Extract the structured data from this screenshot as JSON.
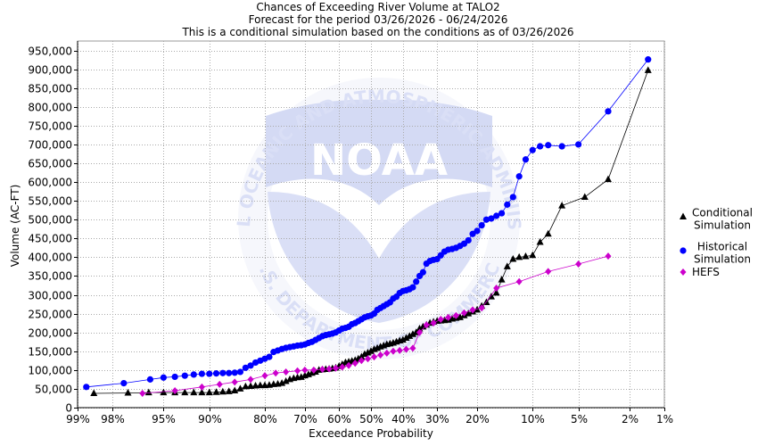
{
  "chart_data": {
    "type": "scatter",
    "title_lines": [
      "Chances of Exceeding River Volume at TALO2",
      "Forecast for the period 03/26/2026 - 06/24/2026",
      "This is a conditional simulation based on the conditions as of 03/26/2026"
    ],
    "xlabel": "Exceedance Probability",
    "ylabel": "Volume (AC-FT)",
    "x_scale": "normal-probability (reversed)",
    "xlim": [
      99,
      1
    ],
    "ylim": [
      0,
      975000
    ],
    "grid": true,
    "legend_position": "right",
    "x_ticks": [
      {
        "value": 99,
        "label": "99%"
      },
      {
        "value": 98,
        "label": "98%"
      },
      {
        "value": 95,
        "label": "95%"
      },
      {
        "value": 90,
        "label": "90%"
      },
      {
        "value": 80,
        "label": "80%"
      },
      {
        "value": 70,
        "label": "70%"
      },
      {
        "value": 60,
        "label": "60%"
      },
      {
        "value": 50,
        "label": "50%"
      },
      {
        "value": 40,
        "label": "40%"
      },
      {
        "value": 30,
        "label": "30%"
      },
      {
        "value": 20,
        "label": "20%"
      },
      {
        "value": 10,
        "label": "10%"
      },
      {
        "value": 5,
        "label": "5%"
      },
      {
        "value": 2,
        "label": "2%"
      },
      {
        "value": 1,
        "label": "1%"
      }
    ],
    "y_ticks": [
      {
        "value": 0,
        "label": "0"
      },
      {
        "value": 50000,
        "label": "50,000"
      },
      {
        "value": 100000,
        "label": "100,000"
      },
      {
        "value": 150000,
        "label": "150,000"
      },
      {
        "value": 200000,
        "label": "200,000"
      },
      {
        "value": 250000,
        "label": "250,000"
      },
      {
        "value": 300000,
        "label": "300,000"
      },
      {
        "value": 350000,
        "label": "350,000"
      },
      {
        "value": 400000,
        "label": "400,000"
      },
      {
        "value": 450000,
        "label": "450,000"
      },
      {
        "value": 500000,
        "label": "500,000"
      },
      {
        "value": 550000,
        "label": "550,000"
      },
      {
        "value": 600000,
        "label": "600,000"
      },
      {
        "value": 650000,
        "label": "650,000"
      },
      {
        "value": 700000,
        "label": "700,000"
      },
      {
        "value": 750000,
        "label": "750,000"
      },
      {
        "value": 800000,
        "label": "800,000"
      },
      {
        "value": 850000,
        "label": "850,000"
      },
      {
        "value": 900000,
        "label": "900,000"
      },
      {
        "value": 950000,
        "label": "950,000"
      }
    ],
    "series": [
      {
        "name": "Conditional Simulation",
        "legend_lines": [
          "Conditional",
          "Simulation"
        ],
        "color": "#000000",
        "marker": "triangle",
        "x": [
          98.6,
          97.3,
          96.1,
          95.0,
          94.0,
          93.0,
          92.0,
          91.0,
          90.0,
          89.0,
          88.0,
          87.0,
          86.0,
          85.0,
          84.0,
          83.0,
          82.0,
          81.0,
          80.0,
          79.0,
          78.0,
          77.0,
          76.0,
          75.0,
          74.0,
          73.0,
          72.0,
          71.0,
          70.0,
          69.0,
          68.0,
          67.0,
          66.0,
          65.0,
          64.0,
          63.0,
          62.0,
          61.0,
          60.0,
          59.0,
          58.0,
          57.0,
          56.0,
          55.0,
          54.0,
          53.0,
          52.0,
          51.0,
          50.0,
          49.0,
          48.0,
          47.0,
          46.0,
          45.0,
          44.0,
          43.0,
          42.0,
          41.0,
          40.0,
          39.0,
          38.0,
          37.0,
          36.0,
          35.0,
          34.0,
          33.0,
          32.0,
          31.0,
          30.0,
          29.0,
          28.0,
          27.0,
          26.0,
          25.0,
          24.0,
          23.0,
          22.0,
          21.0,
          20.0,
          19.0,
          18.0,
          17.0,
          16.0,
          15.0,
          14.0,
          13.0,
          12.0,
          11.0,
          10.0,
          9.0,
          8.0,
          6.5,
          4.5,
          3.0,
          1.4
        ],
        "y": [
          38000,
          39000,
          40000,
          40000,
          40000,
          40000,
          40000,
          40000,
          40000,
          41000,
          42000,
          43000,
          45000,
          50000,
          56000,
          57000,
          58000,
          59000,
          59000,
          60000,
          62000,
          63000,
          65000,
          70000,
          75000,
          78000,
          80000,
          81000,
          85000,
          88000,
          92000,
          95000,
          100000,
          101000,
          102000,
          103000,
          104000,
          106000,
          110000,
          115000,
          120000,
          122000,
          124000,
          126000,
          130000,
          135000,
          142000,
          146000,
          150000,
          155000,
          158000,
          162000,
          165000,
          168000,
          170000,
          172000,
          175000,
          178000,
          180000,
          185000,
          190000,
          195000,
          200000,
          210000,
          215000,
          220000,
          225000,
          228000,
          230000,
          231000,
          232000,
          233000,
          236000,
          238000,
          240000,
          245000,
          250000,
          255000,
          260000,
          270000,
          280000,
          295000,
          305000,
          340000,
          375000,
          395000,
          400000,
          402000,
          405000,
          440000,
          462000,
          537000,
          560000,
          607000,
          897000
        ]
      },
      {
        "name": "Historical Simulation",
        "legend_lines": [
          "Historical",
          "Simulation"
        ],
        "color": "#0000ff",
        "marker": "circle",
        "x": [
          98.8,
          97.5,
          96.0,
          95.0,
          94.0,
          93.0,
          92.0,
          91.0,
          90.0,
          89.0,
          88.0,
          87.0,
          86.0,
          85.0,
          84.0,
          83.0,
          82.0,
          81.0,
          80.0,
          79.0,
          78.0,
          77.0,
          76.0,
          75.0,
          74.0,
          73.0,
          72.0,
          71.0,
          70.0,
          69.0,
          68.0,
          67.0,
          66.0,
          65.0,
          64.0,
          63.0,
          62.0,
          61.0,
          60.0,
          59.0,
          58.0,
          57.0,
          56.0,
          55.0,
          54.0,
          53.0,
          52.0,
          51.0,
          50.0,
          49.0,
          48.0,
          47.0,
          46.0,
          45.0,
          44.0,
          43.0,
          42.0,
          41.0,
          40.0,
          39.0,
          38.0,
          37.0,
          36.0,
          35.0,
          34.0,
          33.0,
          32.0,
          31.0,
          30.0,
          29.0,
          28.0,
          27.0,
          26.0,
          25.0,
          24.0,
          23.0,
          22.0,
          21.0,
          20.0,
          19.0,
          18.0,
          17.0,
          16.0,
          15.0,
          14.0,
          13.0,
          12.0,
          11.0,
          10.0,
          9.0,
          8.0,
          6.5,
          5.0,
          3.0,
          1.4
        ],
        "y": [
          55000,
          65000,
          75000,
          80000,
          82000,
          85000,
          88000,
          90000,
          90000,
          91000,
          92000,
          92000,
          93000,
          95000,
          106000,
          112000,
          120000,
          125000,
          130000,
          135000,
          148000,
          152000,
          156000,
          159000,
          161000,
          163000,
          165000,
          166000,
          168000,
          172000,
          175000,
          180000,
          185000,
          190000,
          193000,
          195000,
          197000,
          200000,
          205000,
          210000,
          212000,
          215000,
          222000,
          225000,
          230000,
          235000,
          240000,
          243000,
          245000,
          250000,
          260000,
          265000,
          270000,
          275000,
          280000,
          290000,
          295000,
          305000,
          310000,
          312000,
          315000,
          320000,
          335000,
          350000,
          360000,
          383000,
          390000,
          393000,
          395000,
          405000,
          415000,
          420000,
          422000,
          425000,
          430000,
          436000,
          445000,
          462000,
          470000,
          485000,
          500000,
          503000,
          510000,
          517000,
          540000,
          560000,
          615000,
          660000,
          685000,
          695000,
          698000,
          695000,
          700000,
          788000,
          926000
        ]
      },
      {
        "name": "HEFS",
        "legend_lines": [
          "HEFS"
        ],
        "color": "#cc00cc",
        "marker": "diamond",
        "x": [
          96.5,
          94.0,
          91.0,
          88.5,
          86.0,
          83.0,
          80.0,
          77.5,
          75.0,
          72.0,
          70.0,
          67.5,
          65.0,
          63.0,
          61.0,
          59.0,
          57.0,
          55.0,
          53.0,
          51.0,
          49.0,
          47.0,
          45.0,
          43.0,
          41.0,
          39.0,
          37.0,
          35.0,
          33.0,
          31.0,
          29.0,
          27.0,
          25.0,
          23.0,
          21.0,
          19.0,
          16.0,
          12.0,
          8.0,
          5.0,
          3.0
        ],
        "y": [
          38000,
          45000,
          55000,
          62000,
          68000,
          75000,
          85000,
          92000,
          95000,
          98000,
          100000,
          100000,
          102000,
          103000,
          105000,
          108000,
          112000,
          118000,
          125000,
          130000,
          135000,
          140000,
          145000,
          150000,
          152000,
          155000,
          158000,
          200000,
          220000,
          225000,
          235000,
          240000,
          245000,
          252000,
          260000,
          265000,
          318000,
          335000,
          362000,
          382000,
          403000
        ]
      }
    ],
    "watermark": {
      "logo_text": "NOAA",
      "ring_text": "NATIONAL OCEANIC AND ATMOSPHERIC ADMINISTRATION",
      "bottom_text": "U.S. DEPARTMENT OF COMMERCE"
    }
  }
}
